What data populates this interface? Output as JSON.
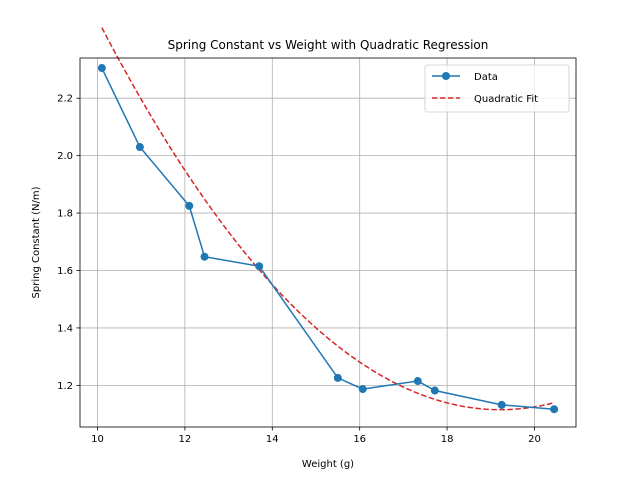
{
  "chart_data": {
    "type": "line",
    "title": "Spring Constant vs Weight with Quadratic Regression",
    "xlabel": "Weight (g)",
    "ylabel": "Spring Constant (N/m)",
    "xlim": [
      9.6,
      20.95
    ],
    "ylim": [
      1.055,
      2.34
    ],
    "xticks": [
      10,
      12,
      14,
      16,
      18,
      20
    ],
    "yticks": [
      1.2,
      1.4,
      1.6,
      1.8,
      2.0,
      2.2
    ],
    "xtick_labels": [
      "10",
      "12",
      "14",
      "16",
      "18",
      "20"
    ],
    "ytick_labels": [
      "1.2",
      "1.4",
      "1.6",
      "1.8",
      "2.0",
      "2.2"
    ],
    "grid": true,
    "legend_position": "top-right",
    "series": [
      {
        "name": "Data",
        "style": "line-with-markers",
        "color": "#1f77b4",
        "x": [
          10.1,
          10.97,
          12.1,
          12.45,
          13.7,
          15.5,
          16.07,
          17.33,
          17.72,
          19.25,
          20.45
        ],
        "y": [
          2.305,
          2.03,
          1.825,
          1.648,
          1.615,
          1.226,
          1.187,
          1.215,
          1.182,
          1.132,
          1.117
        ]
      },
      {
        "name": "Quadratic Fit",
        "style": "dashed",
        "color": "#d62728",
        "coefficients": [
          0.016,
          -0.615,
          7.025
        ],
        "x_range": [
          10.1,
          20.45
        ]
      }
    ]
  }
}
